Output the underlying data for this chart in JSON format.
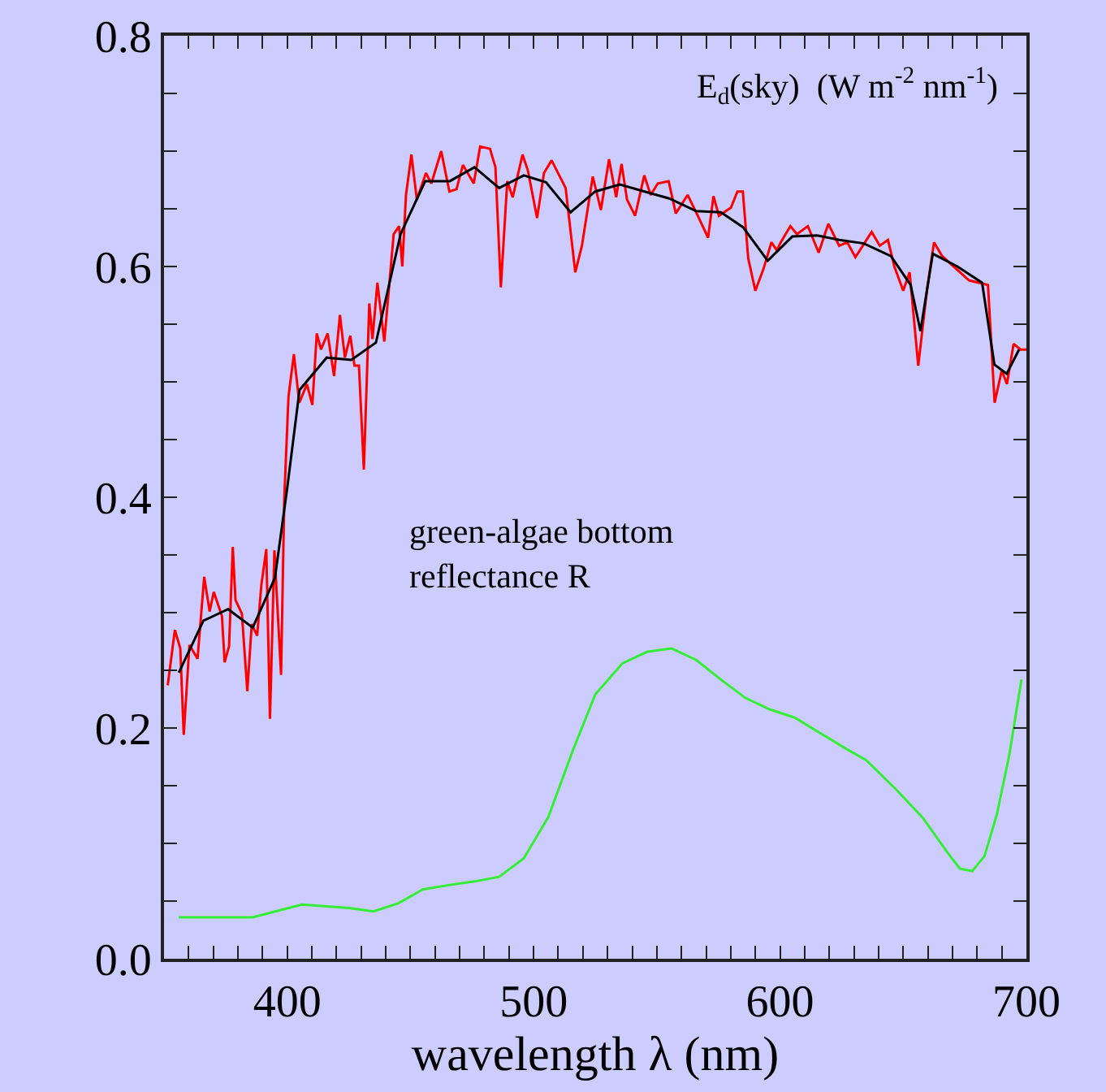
{
  "chart_data": {
    "type": "line",
    "xlabel": "wavelength λ (nm)",
    "annotations": [
      "E$_{d}$(sky)  (W m$^{-2}$ nm$^{-1}$)",
      "green-algae bottom\nreflectance R"
    ],
    "series": [
      {
        "color": "#ff0000",
        "x": [
          351.5,
          354.4,
          356.6,
          358,
          360.3,
          363.6,
          366.3,
          368.5,
          370.2,
          373.5,
          374.6,
          376.4,
          377.9,
          379,
          381.6,
          383.8,
          385.6,
          387.8,
          389.5,
          391.5,
          393,
          394.8,
          397.5,
          398.8,
          400.5,
          402.7,
          404.9,
          408,
          410.2,
          412,
          413.7,
          416.4,
          419,
          421.4,
          423.4,
          425.6,
          427.3,
          429.1,
          431.1,
          433.3,
          434.6,
          436.6,
          439.4,
          443.2,
          445.4,
          446.7,
          448.2,
          450.4,
          452.6,
          456.3,
          458.5,
          462.5,
          465.8,
          468.7,
          471.3,
          475.7,
          478.3,
          482.3,
          484.5,
          486.7,
          489.3,
          491.5,
          495.5,
          497.7,
          501.4,
          504.2,
          507.3,
          513,
          516.9,
          519.6,
          524,
          527.3,
          530.6,
          533.5,
          535.7,
          537.9,
          541.2,
          544.9,
          547.5,
          550.4,
          554.8,
          557.7,
          562.5,
          566.4,
          570.8,
          573,
          575.2,
          580.1,
          582.7,
          584.9,
          587.1,
          590,
          593.3,
          596.5,
          598.7,
          600.3,
          604.2,
          606.9,
          611.3,
          615.7,
          619.6,
          624,
          627.3,
          630.6,
          637.2,
          640.5,
          643.8,
          646.4,
          650,
          652.6,
          656.1,
          659.6,
          662.5,
          665.8,
          676.7,
          684.4,
          687.1,
          690,
          692.1,
          694.8,
          697.6,
          700
        ],
        "values": [
          0.237,
          0.285,
          0.269,
          0.194,
          0.272,
          0.26,
          0.331,
          0.301,
          0.318,
          0.297,
          0.257,
          0.271,
          0.357,
          0.311,
          0.299,
          0.232,
          0.29,
          0.28,
          0.324,
          0.355,
          0.208,
          0.354,
          0.246,
          0.399,
          0.487,
          0.524,
          0.482,
          0.498,
          0.48,
          0.542,
          0.528,
          0.542,
          0.505,
          0.558,
          0.521,
          0.54,
          0.514,
          0.514,
          0.424,
          0.568,
          0.537,
          0.586,
          0.535,
          0.628,
          0.635,
          0.6,
          0.662,
          0.697,
          0.658,
          0.681,
          0.672,
          0.7,
          0.665,
          0.667,
          0.688,
          0.672,
          0.704,
          0.702,
          0.686,
          0.582,
          0.674,
          0.66,
          0.697,
          0.683,
          0.642,
          0.681,
          0.692,
          0.668,
          0.595,
          0.618,
          0.678,
          0.649,
          0.693,
          0.66,
          0.689,
          0.658,
          0.644,
          0.679,
          0.662,
          0.672,
          0.674,
          0.646,
          0.662,
          0.645,
          0.625,
          0.661,
          0.644,
          0.651,
          0.665,
          0.665,
          0.607,
          0.579,
          0.598,
          0.621,
          0.614,
          0.621,
          0.635,
          0.628,
          0.635,
          0.612,
          0.637,
          0.618,
          0.621,
          0.608,
          0.63,
          0.618,
          0.623,
          0.6,
          0.579,
          0.595,
          0.514,
          0.579,
          0.621,
          0.609,
          0.588,
          0.584,
          0.482,
          0.51,
          0.498,
          0.533,
          0.528,
          0.528
        ]
      },
      {
        "color": "#000000",
        "x": [
          356,
          366,
          376,
          386,
          395,
          400,
          405,
          416,
          426,
          436,
          446,
          456,
          466,
          476,
          486,
          496,
          505,
          515,
          525,
          535,
          545,
          555,
          566,
          576,
          585,
          595,
          605,
          615,
          624,
          634,
          645,
          653,
          657,
          662,
          672,
          682,
          687,
          692,
          697
        ],
        "values": [
          0.248,
          0.293,
          0.303,
          0.287,
          0.33,
          0.408,
          0.493,
          0.521,
          0.519,
          0.534,
          0.628,
          0.674,
          0.674,
          0.686,
          0.668,
          0.679,
          0.673,
          0.647,
          0.665,
          0.671,
          0.665,
          0.659,
          0.648,
          0.647,
          0.634,
          0.605,
          0.626,
          0.627,
          0.623,
          0.62,
          0.609,
          0.584,
          0.544,
          0.611,
          0.6,
          0.586,
          0.515,
          0.507,
          0.528
        ]
      },
      {
        "color": "#33ee33",
        "x": [
          356,
          386,
          406,
          425,
          435,
          445,
          455,
          466,
          476,
          486,
          496,
          506,
          516,
          525,
          536,
          546,
          556,
          566,
          576,
          586,
          596,
          606,
          616,
          626,
          635,
          647,
          658,
          668,
          673,
          678,
          683,
          688,
          693,
          698
        ],
        "values": [
          0.036,
          0.036,
          0.047,
          0.044,
          0.041,
          0.048,
          0.06,
          0.064,
          0.067,
          0.071,
          0.087,
          0.123,
          0.181,
          0.229,
          0.256,
          0.266,
          0.269,
          0.259,
          0.242,
          0.226,
          0.216,
          0.209,
          0.196,
          0.183,
          0.172,
          0.147,
          0.122,
          0.092,
          0.078,
          0.076,
          0.089,
          0.125,
          0.176,
          0.242
        ]
      }
    ],
    "xlim": [
      350,
      700
    ],
    "xticks": [
      {
        "value": 350,
        "label": null
      },
      {
        "value": 360,
        "label": null
      },
      {
        "value": 370,
        "label": null
      },
      {
        "value": 380,
        "label": null
      },
      {
        "value": 390,
        "label": null
      },
      400,
      {
        "value": 410,
        "label": null
      },
      {
        "value": 420,
        "label": null
      },
      {
        "value": 430,
        "label": null
      },
      {
        "value": 440,
        "label": null
      },
      {
        "value": 450,
        "label": null
      },
      {
        "value": 460,
        "label": null
      },
      {
        "value": 470,
        "label": null
      },
      {
        "value": 480,
        "label": null
      },
      {
        "value": 490,
        "label": null
      },
      500,
      {
        "value": 510,
        "label": null
      },
      {
        "value": 520,
        "label": null
      },
      {
        "value": 530,
        "label": null
      },
      {
        "value": 540,
        "label": null
      },
      {
        "value": 550,
        "label": null
      },
      {
        "value": 560,
        "label": null
      },
      {
        "value": 570,
        "label": null
      },
      {
        "value": 580,
        "label": null
      },
      {
        "value": 590,
        "label": null
      },
      600,
      {
        "value": 610,
        "label": null
      },
      {
        "value": 620,
        "label": null
      },
      {
        "value": 630,
        "label": null
      },
      {
        "value": 640,
        "label": null
      },
      {
        "value": 650,
        "label": null
      },
      {
        "value": 660,
        "label": null
      },
      {
        "value": 670,
        "label": null
      },
      {
        "value": 680,
        "label": null
      },
      {
        "value": 690,
        "label": null
      },
      700
    ],
    "ylim": [
      0,
      0.8
    ],
    "yticks": [
      {
        "value": 0,
        "label": "0.0"
      },
      {
        "value": 0.05,
        "label": null
      },
      {
        "value": 0.1,
        "label": null
      },
      {
        "value": 0.15,
        "label": null
      },
      0.2,
      {
        "value": 0.25,
        "label": null
      },
      {
        "value": 0.3,
        "label": null
      },
      {
        "value": 0.35,
        "label": null
      },
      0.4,
      {
        "value": 0.45,
        "label": null
      },
      {
        "value": 0.5,
        "label": null
      },
      {
        "value": 0.55,
        "label": null
      },
      0.6,
      {
        "value": 0.65,
        "label": null
      },
      {
        "value": 0.7,
        "label": null
      },
      {
        "value": 0.75,
        "label": null
      },
      0.8
    ],
    "grid": false,
    "marker": "none",
    "line_style": "solid"
  }
}
